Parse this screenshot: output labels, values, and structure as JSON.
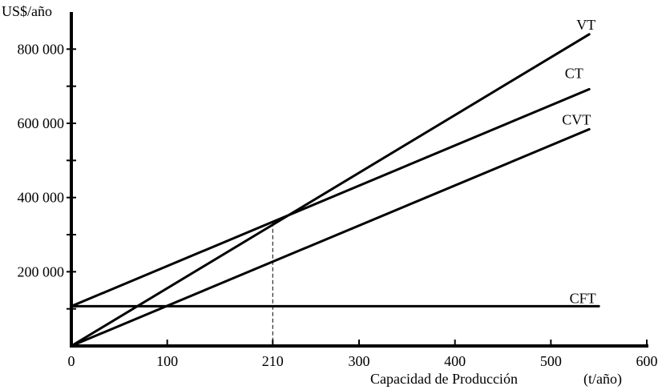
{
  "chart_data": {
    "type": "line",
    "title": "",
    "ylabel": "US$/año",
    "xlabel": "Capacidad de Producción",
    "xunit": "(t/año)",
    "xlim": [
      0,
      600
    ],
    "ylim": [
      0,
      900000
    ],
    "x_ticks": [
      {
        "value": 0,
        "label": "0"
      },
      {
        "value": 100,
        "label": "100"
      },
      {
        "value": 210,
        "label": "210"
      },
      {
        "value": 300,
        "label": "300"
      },
      {
        "value": 400,
        "label": "400"
      },
      {
        "value": 500,
        "label": "500"
      },
      {
        "value": 600,
        "label": "600"
      }
    ],
    "y_ticks": [
      {
        "value": 200000,
        "label": "200 000"
      },
      {
        "value": 400000,
        "label": "400 000"
      },
      {
        "value": 600000,
        "label": "600 000"
      },
      {
        "value": 800000,
        "label": "800 000"
      }
    ],
    "y_minor_ticks": [
      100000,
      300000,
      500000,
      700000
    ],
    "series": [
      {
        "name": "VT",
        "x": [
          0,
          540
        ],
        "y": [
          0,
          840000
        ]
      },
      {
        "name": "CT",
        "x": [
          0,
          540
        ],
        "y": [
          107000,
          692000
        ]
      },
      {
        "name": "CVT",
        "x": [
          0,
          540
        ],
        "y": [
          0,
          584000
        ]
      },
      {
        "name": "CFT",
        "x": [
          0,
          550
        ],
        "y": [
          107000,
          107000
        ]
      }
    ],
    "annotations": [
      {
        "type": "vertical-dashed",
        "x": 210,
        "y": 333000
      }
    ],
    "grid": false,
    "legend": "labels at line ends"
  }
}
